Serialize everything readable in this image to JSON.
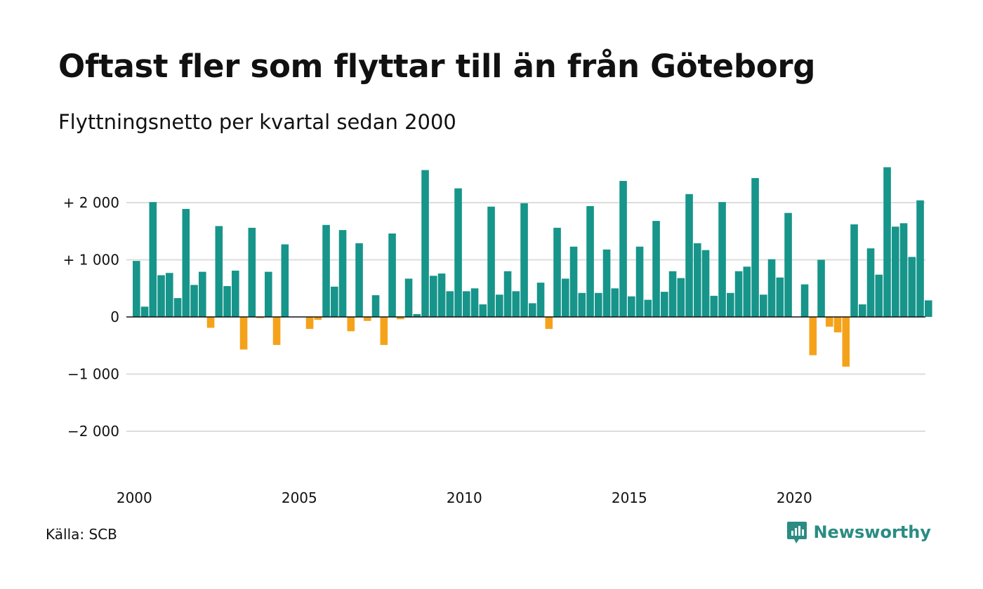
{
  "header": {
    "title": "Oftast fler som flyttar till än från Göteborg",
    "subtitle": "Flyttningsnetto per kvartal sedan 2000"
  },
  "footer": {
    "source": "Källa: SCB",
    "brand": "Newsworthy"
  },
  "chart_data": {
    "type": "bar",
    "title": "Oftast fler som flyttar till än från Göteborg",
    "subtitle": "Flyttningsnetto per kvartal sedan 2000",
    "xlabel": "",
    "ylabel": "",
    "x_start": "2000 Q1",
    "x_end": "2024 Q1",
    "x_ticks": [
      "2000",
      "2005",
      "2010",
      "2015",
      "2020"
    ],
    "y_ticks": [
      {
        "value": 2000,
        "label": "+ 2 000"
      },
      {
        "value": 1000,
        "label": "+ 1 000"
      },
      {
        "value": 0,
        "label": "0"
      },
      {
        "value": -1000,
        "label": "−1 000"
      },
      {
        "value": -2000,
        "label": "−2 000"
      }
    ],
    "ylim": [
      -2600,
      2700
    ],
    "grid": true,
    "colors": {
      "positive": "#17958a",
      "negative": "#f5a21b",
      "grid": "#dddddd",
      "axis": "#111111"
    },
    "categories": [
      "2000 Q1",
      "2000 Q2",
      "2000 Q3",
      "2000 Q4",
      "2001 Q1",
      "2001 Q2",
      "2001 Q3",
      "2001 Q4",
      "2002 Q1",
      "2002 Q2",
      "2002 Q3",
      "2002 Q4",
      "2003 Q1",
      "2003 Q2",
      "2003 Q3",
      "2003 Q4",
      "2004 Q1",
      "2004 Q2",
      "2004 Q3",
      "2004 Q4",
      "2005 Q1",
      "2005 Q2",
      "2005 Q3",
      "2005 Q4",
      "2006 Q1",
      "2006 Q2",
      "2006 Q3",
      "2006 Q4",
      "2007 Q1",
      "2007 Q2",
      "2007 Q3",
      "2007 Q4",
      "2008 Q1",
      "2008 Q2",
      "2008 Q3",
      "2008 Q4",
      "2009 Q1",
      "2009 Q2",
      "2009 Q3",
      "2009 Q4",
      "2010 Q1",
      "2010 Q2",
      "2010 Q3",
      "2010 Q4",
      "2011 Q1",
      "2011 Q2",
      "2011 Q3",
      "2011 Q4",
      "2012 Q1",
      "2012 Q2",
      "2012 Q3",
      "2012 Q4",
      "2013 Q1",
      "2013 Q2",
      "2013 Q3",
      "2013 Q4",
      "2014 Q1",
      "2014 Q2",
      "2014 Q3",
      "2014 Q4",
      "2015 Q1",
      "2015 Q2",
      "2015 Q3",
      "2015 Q4",
      "2016 Q1",
      "2016 Q2",
      "2016 Q3",
      "2016 Q4",
      "2017 Q1",
      "2017 Q2",
      "2017 Q3",
      "2017 Q4",
      "2018 Q1",
      "2018 Q2",
      "2018 Q3",
      "2018 Q4",
      "2019 Q1",
      "2019 Q2",
      "2019 Q3",
      "2019 Q4",
      "2020 Q1",
      "2020 Q2",
      "2020 Q3",
      "2020 Q4",
      "2021 Q1",
      "2021 Q2",
      "2021 Q3",
      "2021 Q4",
      "2022 Q1",
      "2022 Q2",
      "2022 Q3",
      "2022 Q4",
      "2023 Q1",
      "2023 Q2",
      "2023 Q3",
      "2023 Q4",
      "2024 Q1"
    ],
    "values": [
      980,
      180,
      2010,
      730,
      770,
      330,
      1890,
      560,
      790,
      -190,
      1590,
      540,
      810,
      -570,
      1560,
      -20,
      790,
      -490,
      1270,
      0,
      0,
      -210,
      -50,
      1610,
      530,
      1520,
      -250,
      1290,
      -70,
      380,
      -490,
      1460,
      -40,
      670,
      50,
      2570,
      720,
      760,
      450,
      2250,
      450,
      500,
      220,
      1930,
      390,
      800,
      450,
      1990,
      240,
      600,
      -210,
      1560,
      670,
      1230,
      420,
      1940,
      420,
      1180,
      500,
      2380,
      360,
      1230,
      300,
      1680,
      440,
      800,
      680,
      2150,
      1290,
      1170,
      370,
      2010,
      420,
      800,
      880,
      2430,
      390,
      1010,
      690,
      1820,
      0,
      570,
      -670,
      1000,
      -170,
      -270,
      -870,
      1620,
      220,
      1200,
      740,
      2620,
      1580,
      1640,
      1050,
      2040,
      290
    ]
  }
}
